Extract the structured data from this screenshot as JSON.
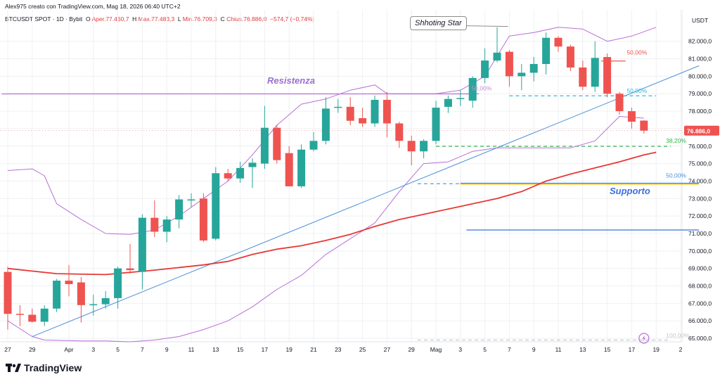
{
  "header": {
    "line1": "Alex975 creato con TradingView.com, Mag 18, 2026 06:40 UTC+2",
    "symbol": "BTCUSDT SPOT · 1D · Bybit",
    "o_k": "O",
    "o_v": "Aper.77.460,7",
    "h_k": "H",
    "h_v": "Max.77.483,3",
    "l_k": "L",
    "l_v": "Min.76.709,3",
    "c_k": "C",
    "c_v": "Chius.76.886,0",
    "chg": "−574,7 (−0,74%)"
  },
  "unit": "USDT",
  "brand": "TradingView",
  "chart_data": {
    "type": "candlestick",
    "colors": {
      "up": "#26a69a",
      "down": "#ef5350",
      "ma": "#e53935",
      "bands": "#b86fd6",
      "trend": "#4a90d9",
      "grid": "#eef0f3"
    },
    "ylim": [
      64800,
      83800
    ],
    "y_ticks": [
      {
        "v": 65000,
        "label": "65.000,0"
      },
      {
        "v": 66000,
        "label": "66.000,0"
      },
      {
        "v": 67000,
        "label": "67.000,0"
      },
      {
        "v": 68000,
        "label": "68.000,0"
      },
      {
        "v": 69000,
        "label": "69.000,0"
      },
      {
        "v": 70000,
        "label": "70.000,0"
      },
      {
        "v": 71000,
        "label": "71.000,0"
      },
      {
        "v": 72000,
        "label": "72.000,0"
      },
      {
        "v": 73000,
        "label": "73.000,0"
      },
      {
        "v": 74000,
        "label": "74.000,0"
      },
      {
        "v": 75000,
        "label": "75.000,0"
      },
      {
        "v": 76000,
        "label": "76.000,0"
      },
      {
        "v": 77000,
        "label": "77.000,0"
      },
      {
        "v": 78000,
        "label": "78.000,0"
      },
      {
        "v": 79000,
        "label": "79.000,0"
      },
      {
        "v": 80000,
        "label": "80.000,0"
      },
      {
        "v": 81000,
        "label": "81.000,0"
      },
      {
        "v": 82000,
        "label": "82.000,0"
      }
    ],
    "x_ticks": [
      {
        "i": 0,
        "label": "27"
      },
      {
        "i": 2,
        "label": "29"
      },
      {
        "i": 5,
        "label": "Apr"
      },
      {
        "i": 7,
        "label": "3"
      },
      {
        "i": 9,
        "label": "5"
      },
      {
        "i": 11,
        "label": "7"
      },
      {
        "i": 13,
        "label": "9"
      },
      {
        "i": 15,
        "label": "11"
      },
      {
        "i": 17,
        "label": "13"
      },
      {
        "i": 19,
        "label": "15"
      },
      {
        "i": 21,
        "label": "17"
      },
      {
        "i": 23,
        "label": "19"
      },
      {
        "i": 25,
        "label": "21"
      },
      {
        "i": 27,
        "label": "23"
      },
      {
        "i": 29,
        "label": "25"
      },
      {
        "i": 31,
        "label": "27"
      },
      {
        "i": 33,
        "label": "29"
      },
      {
        "i": 35,
        "label": "Mag"
      },
      {
        "i": 37,
        "label": "3"
      },
      {
        "i": 39,
        "label": "5"
      },
      {
        "i": 41,
        "label": "7"
      },
      {
        "i": 43,
        "label": "9"
      },
      {
        "i": 45,
        "label": "11"
      },
      {
        "i": 47,
        "label": "13"
      },
      {
        "i": 49,
        "label": "15"
      },
      {
        "i": 51,
        "label": "17"
      },
      {
        "i": 53,
        "label": "19"
      },
      {
        "i": 55,
        "label": "2"
      }
    ],
    "candles": [
      {
        "o": 68800,
        "h": 69100,
        "l": 65500,
        "c": 66400
      },
      {
        "o": 66400,
        "h": 66900,
        "l": 65700,
        "c": 66350
      },
      {
        "o": 66350,
        "h": 66700,
        "l": 65900,
        "c": 65950
      },
      {
        "o": 65950,
        "h": 66900,
        "l": 65700,
        "c": 66700
      },
      {
        "o": 66700,
        "h": 68400,
        "l": 66500,
        "c": 68300
      },
      {
        "o": 68300,
        "h": 69200,
        "l": 67400,
        "c": 68100
      },
      {
        "o": 68200,
        "h": 68500,
        "l": 65900,
        "c": 66900
      },
      {
        "o": 66900,
        "h": 67500,
        "l": 66300,
        "c": 66950
      },
      {
        "o": 66950,
        "h": 67700,
        "l": 66700,
        "c": 67300
      },
      {
        "o": 67300,
        "h": 69100,
        "l": 66700,
        "c": 69000
      },
      {
        "o": 69000,
        "h": 70400,
        "l": 68700,
        "c": 68900
      },
      {
        "o": 68800,
        "h": 72100,
        "l": 67800,
        "c": 71900
      },
      {
        "o": 71900,
        "h": 72900,
        "l": 70800,
        "c": 71100
      },
      {
        "o": 71100,
        "h": 72000,
        "l": 70500,
        "c": 71800
      },
      {
        "o": 71800,
        "h": 73200,
        "l": 71300,
        "c": 72950
      },
      {
        "o": 72950,
        "h": 73300,
        "l": 72500,
        "c": 72950
      },
      {
        "o": 73000,
        "h": 73300,
        "l": 70500,
        "c": 70600
      },
      {
        "o": 70700,
        "h": 74800,
        "l": 70600,
        "c": 74450
      },
      {
        "o": 74450,
        "h": 74700,
        "l": 74000,
        "c": 74150
      },
      {
        "o": 74150,
        "h": 75100,
        "l": 73900,
        "c": 74750
      },
      {
        "o": 74800,
        "h": 75300,
        "l": 73600,
        "c": 75050
      },
      {
        "o": 75000,
        "h": 78300,
        "l": 74700,
        "c": 77050
      },
      {
        "o": 77050,
        "h": 77200,
        "l": 75000,
        "c": 75200
      },
      {
        "o": 75600,
        "h": 76000,
        "l": 73700,
        "c": 73700
      },
      {
        "o": 73700,
        "h": 76100,
        "l": 73600,
        "c": 75800
      },
      {
        "o": 75800,
        "h": 76800,
        "l": 75700,
        "c": 76300
      },
      {
        "o": 76300,
        "h": 78800,
        "l": 76100,
        "c": 78150
      },
      {
        "o": 78200,
        "h": 78700,
        "l": 77900,
        "c": 78250
      },
      {
        "o": 78250,
        "h": 78800,
        "l": 77200,
        "c": 77450
      },
      {
        "o": 77600,
        "h": 78200,
        "l": 77100,
        "c": 77300
      },
      {
        "o": 77300,
        "h": 78900,
        "l": 77100,
        "c": 78650
      },
      {
        "o": 78650,
        "h": 79100,
        "l": 76500,
        "c": 77300
      },
      {
        "o": 77300,
        "h": 77400,
        "l": 75900,
        "c": 76300
      },
      {
        "o": 76300,
        "h": 76600,
        "l": 74900,
        "c": 75700
      },
      {
        "o": 75700,
        "h": 76400,
        "l": 75300,
        "c": 76300
      },
      {
        "o": 76300,
        "h": 78600,
        "l": 76100,
        "c": 78200
      },
      {
        "o": 78250,
        "h": 78900,
        "l": 77900,
        "c": 78700
      },
      {
        "o": 78700,
        "h": 79200,
        "l": 78300,
        "c": 78750
      },
      {
        "o": 78600,
        "h": 80000,
        "l": 78200,
        "c": 79900
      },
      {
        "o": 79900,
        "h": 81600,
        "l": 79600,
        "c": 80900
      },
      {
        "o": 80900,
        "h": 82800,
        "l": 80800,
        "c": 81350
      },
      {
        "o": 81400,
        "h": 81500,
        "l": 79400,
        "c": 80000
      },
      {
        "o": 80000,
        "h": 80700,
        "l": 79200,
        "c": 80200
      },
      {
        "o": 80200,
        "h": 81100,
        "l": 79700,
        "c": 80700
      },
      {
        "o": 80700,
        "h": 82500,
        "l": 80100,
        "c": 82200
      },
      {
        "o": 82200,
        "h": 82300,
        "l": 81400,
        "c": 81700
      },
      {
        "o": 81700,
        "h": 81800,
        "l": 80300,
        "c": 80500
      },
      {
        "o": 80500,
        "h": 80900,
        "l": 79200,
        "c": 79400
      },
      {
        "o": 79400,
        "h": 82000,
        "l": 79100,
        "c": 81050
      },
      {
        "o": 81100,
        "h": 81300,
        "l": 78800,
        "c": 79000
      },
      {
        "o": 79000,
        "h": 79100,
        "l": 77800,
        "c": 78000
      },
      {
        "o": 78000,
        "h": 78200,
        "l": 77000,
        "c": 77400
      },
      {
        "o": 77460.7,
        "h": 77483.3,
        "l": 76709.3,
        "c": 76886.0
      }
    ],
    "moving_average": [
      [
        0,
        69000
      ],
      [
        4,
        68700
      ],
      [
        8,
        68650
      ],
      [
        12,
        68900
      ],
      [
        16,
        69200
      ],
      [
        18,
        69400
      ],
      [
        20,
        69800
      ],
      [
        22,
        70100
      ],
      [
        24,
        70300
      ],
      [
        26,
        70600
      ],
      [
        28,
        70950
      ],
      [
        30,
        71400
      ],
      [
        32,
        71800
      ],
      [
        34,
        72100
      ],
      [
        36,
        72400
      ],
      [
        38,
        72700
      ],
      [
        40,
        73000
      ],
      [
        42,
        73400
      ],
      [
        44,
        74000
      ],
      [
        46,
        74400
      ],
      [
        48,
        74750
      ],
      [
        50,
        75100
      ],
      [
        52,
        75500
      ],
      [
        53,
        75650
      ]
    ],
    "bollinger_upper": [
      [
        0,
        74600
      ],
      [
        2,
        74700
      ],
      [
        3,
        74300
      ],
      [
        4,
        72700
      ],
      [
        6,
        71800
      ],
      [
        8,
        71000
      ],
      [
        10,
        70950
      ],
      [
        12,
        71200
      ],
      [
        14,
        72000
      ],
      [
        16,
        73000
      ],
      [
        18,
        74000
      ],
      [
        20,
        75500
      ],
      [
        22,
        77200
      ],
      [
        24,
        78400
      ],
      [
        26,
        78700
      ],
      [
        28,
        79200
      ],
      [
        30,
        79500
      ],
      [
        31,
        79000
      ],
      [
        33,
        79000
      ],
      [
        35,
        79000
      ],
      [
        37,
        79200
      ],
      [
        39,
        80000
      ],
      [
        41,
        82300
      ],
      [
        43,
        82500
      ],
      [
        45,
        82800
      ],
      [
        47,
        82700
      ],
      [
        49,
        82000
      ],
      [
        51,
        82300
      ],
      [
        53,
        82800
      ]
    ],
    "bollinger_lower": [
      [
        0,
        66000
      ],
      [
        2,
        65100
      ],
      [
        3,
        64900
      ],
      [
        6,
        64850
      ],
      [
        8,
        64850
      ],
      [
        10,
        64800
      ],
      [
        12,
        64900
      ],
      [
        14,
        65100
      ],
      [
        16,
        65500
      ],
      [
        18,
        66000
      ],
      [
        20,
        66800
      ],
      [
        22,
        67800
      ],
      [
        24,
        68600
      ],
      [
        26,
        69800
      ],
      [
        28,
        70700
      ],
      [
        30,
        71600
      ],
      [
        32,
        73400
      ],
      [
        34,
        75000
      ],
      [
        36,
        75100
      ],
      [
        38,
        75700
      ],
      [
        40,
        75900
      ],
      [
        42,
        75900
      ],
      [
        44,
        75900
      ],
      [
        46,
        75900
      ],
      [
        48,
        76300
      ],
      [
        50,
        77700
      ],
      [
        52,
        77600
      ]
    ],
    "trendline": {
      "from": [
        2,
        65100
      ],
      "to": [
        56.5,
        80600
      ]
    },
    "levels": [
      {
        "name": "resistance",
        "y": 78990,
        "from": -0.5,
        "to": 38.5,
        "color": "#b86fd6",
        "style": "solid"
      },
      {
        "name": "fib-50-top",
        "y": 78880,
        "from": 41,
        "to": 53,
        "color": "#2bbbd8",
        "style": "dashed"
      },
      {
        "name": "fib-38-2",
        "y": 75990,
        "from": 35,
        "to": 54.2,
        "color": "#37b24d",
        "style": "dashed"
      },
      {
        "name": "support-dashed",
        "y": 73850,
        "from": 33.5,
        "to": 37,
        "color": "#4a90d9",
        "style": "dashed"
      },
      {
        "name": "support",
        "y": 73830,
        "from": 37,
        "to": 56.5,
        "color": "#f2b705",
        "style": "solid"
      },
      {
        "name": "support-blue",
        "y": 73880,
        "from": 37,
        "to": 56.5,
        "color": "#4a90d9",
        "style": "solid"
      },
      {
        "name": "low-blue",
        "y": 71200,
        "from": 37.5,
        "to": 56.5,
        "color": "#3a6fe0",
        "style": "solid"
      },
      {
        "name": "fib-100",
        "y": 64900,
        "from": 33.5,
        "to": 54.2,
        "color": "#c7c7c7",
        "style": "dashed"
      },
      {
        "name": "fib-50-red",
        "y": 80870,
        "from": 48.5,
        "to": 50.5,
        "color": "#ef5350",
        "style": "solid"
      }
    ],
    "labels": {
      "resistance": "Resistenza",
      "support": "Supporto",
      "shooting_star": "Shhoting Star",
      "fib_50_pink": "50,00%",
      "fib_50_red": "50,00%",
      "fib_50_cyan": "50,00%",
      "fib_38": "38,20%",
      "fib_50_blue": "50,00%",
      "fib_100": "100,00%",
      "price_tag": "76.886,0"
    }
  }
}
